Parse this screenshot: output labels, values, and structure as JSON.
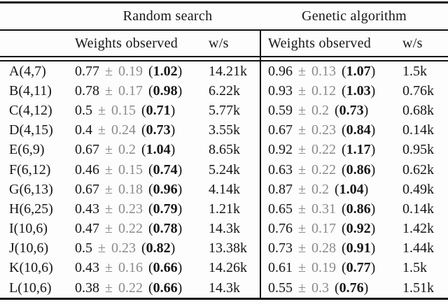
{
  "table": {
    "group_headers": [
      "Random search",
      "Genetic algorithm"
    ],
    "sub_headers": {
      "rs_weights": "Weights observed",
      "rs_ws": "w/s",
      "ga_weights": "Weights observed",
      "ga_ws": "w/s"
    },
    "colors": {
      "text": "#161616",
      "error_gray": "#8b8b8b",
      "rule": "#101010",
      "background": "#fdfdfd"
    },
    "rows": [
      {
        "label": "A(4,7)",
        "rs": {
          "mean": "0.77",
          "err": "± 0.19",
          "best": "1.02",
          "ws": "14.21k"
        },
        "ga": {
          "mean": "0.96",
          "err": "± 0.13",
          "best": "1.07",
          "ws": "1.5k"
        }
      },
      {
        "label": "B(4,11)",
        "rs": {
          "mean": "0.78",
          "err": "± 0.17",
          "best": "0.98",
          "ws": "6.22k"
        },
        "ga": {
          "mean": "0.93",
          "err": "± 0.12",
          "best": "1.03",
          "ws": "0.76k"
        }
      },
      {
        "label": "C(4,12)",
        "rs": {
          "mean": "0.5",
          "err": "± 0.15",
          "best": "0.71",
          "ws": "5.77k"
        },
        "ga": {
          "mean": "0.59",
          "err": "± 0.2",
          "best": "0.73",
          "ws": "0.68k"
        }
      },
      {
        "label": "D(4,15)",
        "rs": {
          "mean": "0.4",
          "err": "± 0.24",
          "best": "0.73",
          "ws": "3.55k"
        },
        "ga": {
          "mean": "0.67",
          "err": "± 0.23",
          "best": "0.84",
          "ws": "0.14k"
        }
      },
      {
        "label": "E(6,9)",
        "rs": {
          "mean": "0.67",
          "err": "± 0.2",
          "best": "1.04",
          "ws": "8.65k"
        },
        "ga": {
          "mean": "0.92",
          "err": "± 0.22",
          "best": "1.17",
          "ws": "0.95k"
        }
      },
      {
        "label": "F(6,12)",
        "rs": {
          "mean": "0.46",
          "err": "± 0.15",
          "best": "0.74",
          "ws": "5.24k"
        },
        "ga": {
          "mean": "0.63",
          "err": "± 0.22",
          "best": "0.86",
          "ws": "0.62k"
        }
      },
      {
        "label": "G(6,13)",
        "rs": {
          "mean": "0.67",
          "err": "± 0.18",
          "best": "0.96",
          "ws": "4.14k"
        },
        "ga": {
          "mean": "0.87",
          "err": "± 0.2",
          "best": "1.04",
          "ws": "0.49k"
        }
      },
      {
        "label": "H(6,25)",
        "rs": {
          "mean": "0.43",
          "err": "± 0.23",
          "best": "0.79",
          "ws": "1.21k"
        },
        "ga": {
          "mean": "0.65",
          "err": "± 0.31",
          "best": "0.86",
          "ws": "0.14k"
        }
      },
      {
        "label": "I(10,6)",
        "rs": {
          "mean": "0.47",
          "err": "± 0.22",
          "best": "0.78",
          "ws": "14.3k"
        },
        "ga": {
          "mean": "0.76",
          "err": "± 0.17",
          "best": "0.92",
          "ws": "1.42k"
        }
      },
      {
        "label": "J(10,6)",
        "rs": {
          "mean": "0.5",
          "err": "± 0.23",
          "best": "0.82",
          "ws": "13.38k"
        },
        "ga": {
          "mean": "0.73",
          "err": "± 0.28",
          "best": "0.91",
          "ws": "1.44k"
        }
      },
      {
        "label": "K(10,6)",
        "rs": {
          "mean": "0.43",
          "err": "± 0.16",
          "best": "0.66",
          "ws": "14.26k"
        },
        "ga": {
          "mean": "0.61",
          "err": "± 0.19",
          "best": "0.77",
          "ws": "1.5k"
        }
      },
      {
        "label": "L(10,6)",
        "rs": {
          "mean": "0.38",
          "err": "± 0.22",
          "best": "0.66",
          "ws": "14.3k"
        },
        "ga": {
          "mean": "0.55",
          "err": "± 0.3",
          "best": "0.76",
          "ws": "1.51k"
        }
      }
    ]
  }
}
